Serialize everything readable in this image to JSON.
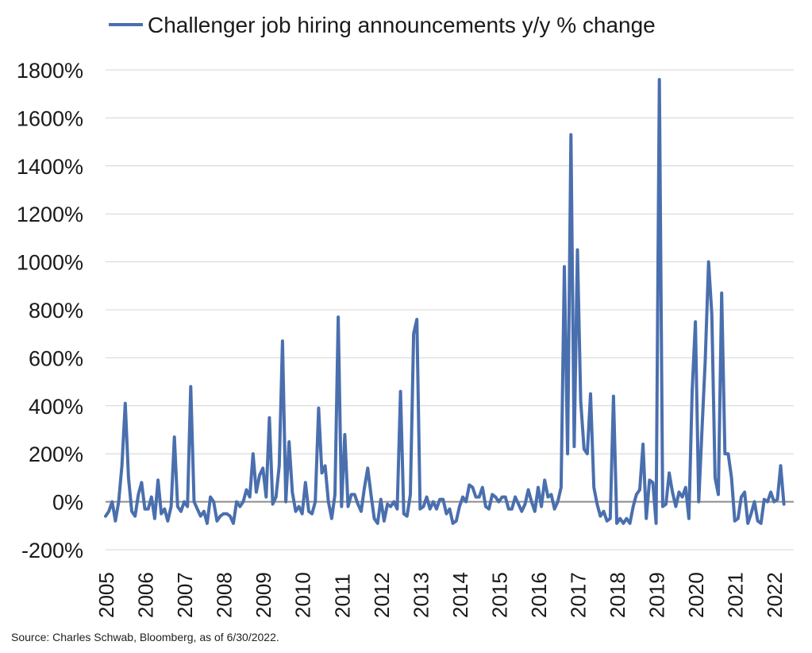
{
  "source_note": "Source: Charles Schwab, Bloomberg, as of 6/30/2022.",
  "chart_data": {
    "type": "line",
    "legend": {
      "placement": "top",
      "series_name": "Challenger job hiring announcements y/y % change"
    },
    "title": "",
    "xlabel": "",
    "ylabel": "",
    "ylim": [
      -200,
      1800
    ],
    "y_ticks": [
      -200,
      0,
      200,
      400,
      600,
      800,
      1000,
      1200,
      1400,
      1600,
      1800
    ],
    "y_tick_labels": [
      "-200%",
      "0%",
      "200%",
      "400%",
      "600%",
      "800%",
      "1000%",
      "1200%",
      "1400%",
      "1600%",
      "1800%"
    ],
    "x_range": [
      2005,
      2022.5
    ],
    "x_ticks": [
      2005,
      2006,
      2007,
      2008,
      2009,
      2010,
      2011,
      2012,
      2013,
      2014,
      2015,
      2016,
      2017,
      2018,
      2019,
      2020,
      2021,
      2022
    ],
    "x_tick_labels": [
      "2005",
      "2006",
      "2007",
      "2008",
      "2009",
      "2010",
      "2011",
      "2012",
      "2013",
      "2014",
      "2015",
      "2016",
      "2017",
      "2018",
      "2019",
      "2020",
      "2021",
      "2022"
    ],
    "grid": "horizontal",
    "zero_line": true,
    "colors": {
      "series": "#4a6fae",
      "grid": "#d4d4d4",
      "zero": "#8c8c8c"
    },
    "series": [
      {
        "name": "Challenger job hiring announcements y/y % change",
        "x_start": "2005-01",
        "frequency": "monthly",
        "values": [
          -60,
          -40,
          0,
          -80,
          0,
          150,
          410,
          100,
          -40,
          -60,
          30,
          80,
          -30,
          -30,
          20,
          -70,
          90,
          -50,
          -30,
          -80,
          -20,
          270,
          -20,
          -40,
          0,
          -20,
          480,
          0,
          -30,
          -60,
          -40,
          -90,
          20,
          0,
          -80,
          -60,
          -50,
          -50,
          -60,
          -90,
          0,
          -20,
          0,
          50,
          20,
          200,
          40,
          110,
          140,
          20,
          350,
          -10,
          20,
          150,
          670,
          0,
          250,
          40,
          -40,
          -20,
          -50,
          80,
          -40,
          -50,
          0,
          390,
          120,
          150,
          0,
          -70,
          30,
          770,
          -20,
          280,
          -20,
          30,
          30,
          -10,
          -40,
          60,
          140,
          30,
          -70,
          -90,
          10,
          -80,
          -10,
          -20,
          0,
          -30,
          460,
          -50,
          -60,
          30,
          700,
          760,
          -30,
          -20,
          20,
          -30,
          0,
          -30,
          10,
          10,
          -50,
          -30,
          -90,
          -80,
          -20,
          20,
          0,
          70,
          60,
          20,
          20,
          60,
          -20,
          -30,
          30,
          20,
          0,
          20,
          20,
          -30,
          -30,
          20,
          -10,
          -40,
          -10,
          50,
          0,
          -40,
          60,
          -20,
          90,
          20,
          30,
          -30,
          0,
          60,
          980,
          200,
          1530,
          230,
          1050,
          420,
          220,
          200,
          450,
          60,
          -10,
          -60,
          -40,
          -80,
          -70,
          440,
          -90,
          -70,
          -90,
          -70,
          -90,
          -20,
          30,
          50,
          240,
          -70,
          90,
          80,
          -90,
          1760,
          -20,
          -10,
          120,
          40,
          -20,
          40,
          20,
          60,
          -70,
          460,
          750,
          0,
          300,
          590,
          1000,
          780,
          100,
          30,
          870,
          200,
          200,
          100,
          -80,
          -70,
          20,
          40,
          -90,
          -50,
          0,
          -80,
          -90,
          10,
          0,
          40,
          0,
          10,
          150,
          -10
        ]
      }
    ]
  }
}
